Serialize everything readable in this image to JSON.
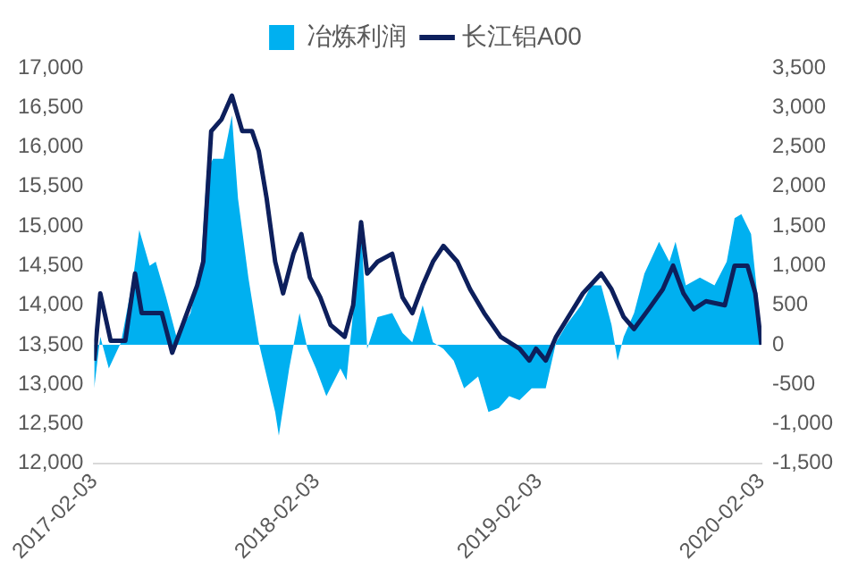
{
  "chart_data": {
    "type": "line",
    "series": [
      {
        "name": "冶炼利润",
        "type": "area",
        "axis": "y2",
        "color": "#00b0f0",
        "x": [
          "2017-02-03",
          "2017-02-13",
          "2017-02-27",
          "2017-03-19",
          "2017-04-08",
          "2017-04-18",
          "2017-05-05",
          "2017-05-15",
          "2017-06-01",
          "2017-06-18",
          "2017-07-11",
          "2017-07-28",
          "2017-08-07",
          "2017-08-17",
          "2017-09-03",
          "2017-09-17",
          "2017-09-27",
          "2017-10-14",
          "2017-10-31",
          "2017-11-10",
          "2017-11-27",
          "2017-12-03",
          "2017-12-20",
          "2018-01-06",
          "2018-01-19",
          "2018-02-02",
          "2018-02-19",
          "2018-03-14",
          "2018-03-24",
          "2018-04-07",
          "2018-04-17",
          "2018-04-27",
          "2018-05-14",
          "2018-06-07",
          "2018-06-24",
          "2018-07-10",
          "2018-07-27",
          "2018-08-13",
          "2018-08-30",
          "2018-09-16",
          "2018-10-03",
          "2018-10-26",
          "2018-11-12",
          "2018-11-29",
          "2018-12-16",
          "2019-01-02",
          "2019-01-22",
          "2019-02-14",
          "2019-03-03",
          "2019-03-20",
          "2019-04-13",
          "2019-04-30",
          "2019-05-16",
          "2019-06-02",
          "2019-06-12",
          "2019-06-22",
          "2019-07-09",
          "2019-07-26",
          "2019-08-19",
          "2019-09-05",
          "2019-09-15",
          "2019-10-02",
          "2019-10-25",
          "2019-11-18",
          "2019-12-08",
          "2019-12-21",
          "2020-01-01",
          "2020-01-17",
          "2020-01-27",
          "2020-02-03"
        ],
        "values": [
          -550,
          100,
          -300,
          30,
          850,
          1450,
          1000,
          1050,
          600,
          100,
          400,
          1000,
          2200,
          2350,
          2350,
          2900,
          1850,
          850,
          30,
          -300,
          -850,
          -1150,
          -300,
          400,
          -50,
          -300,
          -650,
          -300,
          -450,
          650,
          1550,
          -50,
          350,
          400,
          150,
          30,
          500,
          30,
          -50,
          -200,
          -550,
          -400,
          -850,
          -800,
          -650,
          -700,
          -550,
          -550,
          30,
          250,
          500,
          750,
          750,
          250,
          -200,
          100,
          400,
          900,
          1300,
          1050,
          1300,
          750,
          850,
          750,
          1050,
          1600,
          1650,
          1400,
          650,
          30
        ]
      },
      {
        "name": "长江铝A00",
        "type": "line",
        "color": "#0d1f5c",
        "x": [
          "2017-02-03",
          "2017-02-13",
          "2017-03-02",
          "2017-03-26",
          "2017-04-11",
          "2017-04-22",
          "2017-05-25",
          "2017-06-11",
          "2017-06-28",
          "2017-07-22",
          "2017-08-01",
          "2017-08-14",
          "2017-08-31",
          "2017-09-17",
          "2017-10-04",
          "2017-10-20",
          "2017-10-31",
          "2017-11-13",
          "2017-11-27",
          "2017-12-10",
          "2017-12-27",
          "2018-01-09",
          "2018-01-23",
          "2018-02-09",
          "2018-02-26",
          "2018-03-21",
          "2018-04-04",
          "2018-04-17",
          "2018-04-27",
          "2018-05-14",
          "2018-06-07",
          "2018-06-24",
          "2018-07-10",
          "2018-07-27",
          "2018-08-13",
          "2018-08-30",
          "2018-09-22",
          "2018-10-13",
          "2018-11-05",
          "2018-12-02",
          "2019-01-02",
          "2019-01-18",
          "2019-01-29",
          "2019-02-14",
          "2019-03-03",
          "2019-03-27",
          "2019-04-16",
          "2019-05-16",
          "2019-06-02",
          "2019-06-22",
          "2019-07-09",
          "2019-08-02",
          "2019-08-25",
          "2019-09-11",
          "2019-09-28",
          "2019-10-15",
          "2019-11-04",
          "2019-12-05",
          "2019-12-21",
          "2020-01-11",
          "2020-01-24",
          "2020-02-03"
        ],
        "values": [
          13300,
          14150,
          13550,
          13550,
          14400,
          13900,
          13900,
          13400,
          13750,
          14250,
          14550,
          16200,
          16350,
          16650,
          16200,
          16200,
          15950,
          15350,
          14550,
          14150,
          14650,
          14900,
          14350,
          14100,
          13750,
          13600,
          14000,
          15050,
          14400,
          14550,
          14650,
          14100,
          13900,
          14250,
          14550,
          14750,
          14550,
          14200,
          13900,
          13600,
          13450,
          13300,
          13450,
          13300,
          13600,
          13900,
          14150,
          14400,
          14200,
          13850,
          13700,
          13950,
          14200,
          14500,
          14150,
          13950,
          14050,
          14000,
          14500,
          14500,
          14150,
          13500
        ]
      }
    ],
    "xlim": [
      "2017-02-03",
      "2020-02-03"
    ],
    "xticks": [
      "2017-02-03",
      "2018-02-03",
      "2019-02-03",
      "2020-02-03"
    ],
    "ylim": [
      12000,
      17000
    ],
    "yticks": [
      {
        "value": 12000,
        "label": "12,000"
      },
      {
        "value": 12500,
        "label": "12,500"
      },
      {
        "value": 13000,
        "label": "13,000"
      },
      {
        "value": 13500,
        "label": "13,500"
      },
      {
        "value": 14000,
        "label": "14,000"
      },
      {
        "value": 14500,
        "label": "14,500"
      },
      {
        "value": 15000,
        "label": "15,000"
      },
      {
        "value": 15500,
        "label": "15,500"
      },
      {
        "value": 16000,
        "label": "16,000"
      },
      {
        "value": 16500,
        "label": "16,500"
      },
      {
        "value": 17000,
        "label": "17,000"
      }
    ],
    "y2lim": [
      -1500,
      3500
    ],
    "y2ticks": [
      {
        "value": -1500,
        "label": "-1,500"
      },
      {
        "value": -1000,
        "label": "-1,000"
      },
      -500,
      0,
      500,
      {
        "value": 1000,
        "label": "1,000"
      },
      {
        "value": 1500,
        "label": "1,500"
      },
      {
        "value": 2000,
        "label": "2,000"
      },
      {
        "value": 2500,
        "label": "2,500"
      },
      {
        "value": 3000,
        "label": "3,000"
      },
      {
        "value": 3500,
        "label": "3,500"
      }
    ],
    "legend": "top",
    "grid": false,
    "marker": "none"
  }
}
